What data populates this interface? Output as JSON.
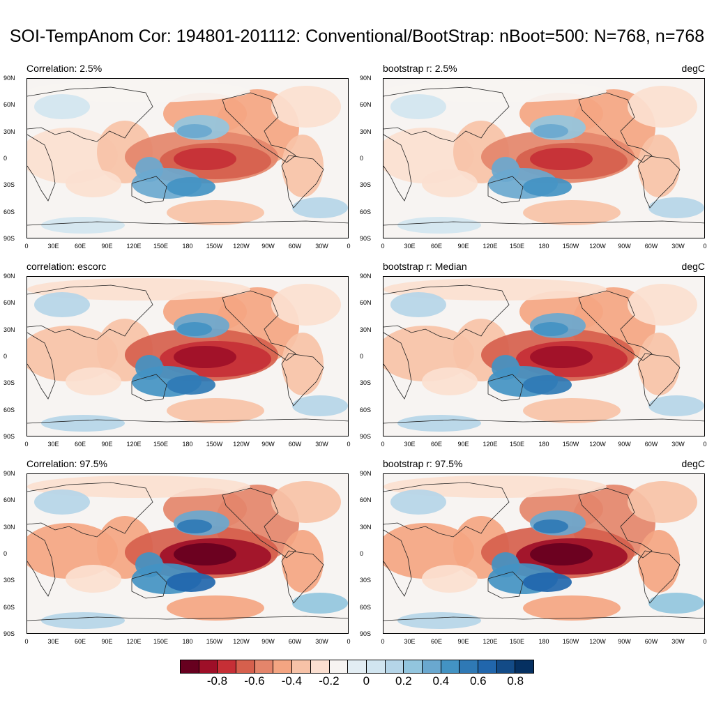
{
  "title": "SOI-TempAnom Cor: 194801-201112: Conventional/BootStrap: nBoot=500: N=768, n=768",
  "panels": [
    {
      "left_label": "Correlation:  2.5%",
      "right_label": "",
      "intensity": 0.82
    },
    {
      "left_label": "bootstrap r:   2.5%",
      "right_label": "degC",
      "intensity": 0.82
    },
    {
      "left_label": "correlation: escorc",
      "right_label": "",
      "intensity": 1.0
    },
    {
      "left_label": "bootstrap r: Median",
      "right_label": "degC",
      "intensity": 1.0
    },
    {
      "left_label": "Correlation: 97.5%",
      "right_label": "",
      "intensity": 1.18
    },
    {
      "left_label": "bootstrap r:  97.5%",
      "right_label": "degC",
      "intensity": 1.18
    }
  ],
  "lat_labels": [
    "90N",
    "60N",
    "30N",
    "0",
    "30S",
    "60S",
    "90S"
  ],
  "lon_labels": [
    "0",
    "30E",
    "60E",
    "90E",
    "120E",
    "150E",
    "180",
    "150W",
    "120W",
    "90W",
    "60W",
    "30W",
    "0"
  ],
  "colorbar": {
    "colors": [
      "#67001f",
      "#9e0f28",
      "#c62f36",
      "#d6604d",
      "#e4856b",
      "#f4a582",
      "#f7c2a7",
      "#fbdfd0",
      "#f7f4f2",
      "#e2edf3",
      "#d1e5f0",
      "#b5d5e8",
      "#92c5de",
      "#6aa8cf",
      "#4393c3",
      "#2f79b5",
      "#2166ac",
      "#134b87",
      "#053061"
    ],
    "labels": [
      "-0.8",
      "-0.6",
      "-0.4",
      "-0.2",
      "0",
      "0.2",
      "0.4",
      "0.6",
      "0.8"
    ]
  }
}
